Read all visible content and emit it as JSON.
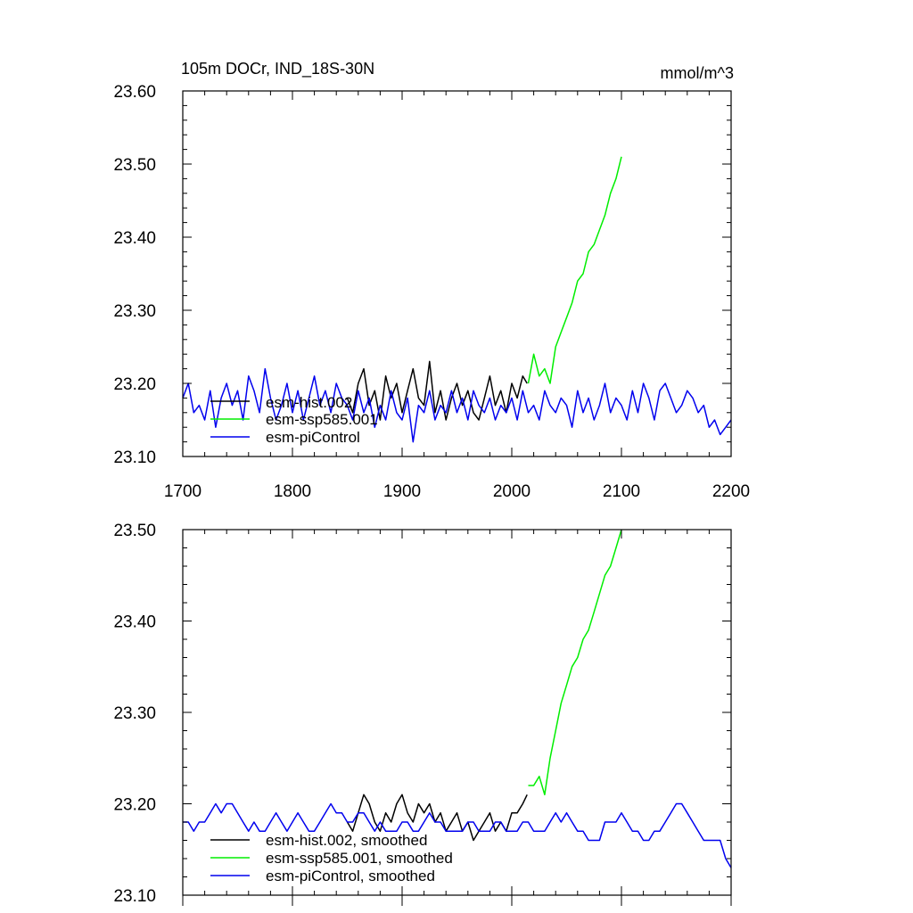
{
  "colors": {
    "hist": "#000000",
    "ssp": "#00ee00",
    "pi": "#0000ee"
  },
  "chart_data": [
    {
      "type": "line",
      "title": "105m DOCr, IND_18S-30N",
      "units": "mmol/m^3",
      "xlim": [
        1700,
        2200
      ],
      "ylim": [
        23.1,
        23.6
      ],
      "x_ticks": [
        "1700",
        "1800",
        "1900",
        "2000",
        "2100",
        "2200"
      ],
      "y_ticks": [
        "23.10",
        "23.20",
        "23.30",
        "23.40",
        "23.50",
        "23.60"
      ],
      "legend_position": "bottom-left",
      "series": [
        {
          "name": "esm-hist.002",
          "color": "#000000",
          "kind": "hist",
          "x": [
            1850,
            1855,
            1860,
            1865,
            1870,
            1875,
            1880,
            1885,
            1890,
            1895,
            1900,
            1905,
            1910,
            1915,
            1920,
            1925,
            1930,
            1935,
            1940,
            1945,
            1950,
            1955,
            1960,
            1965,
            1970,
            1975,
            1980,
            1985,
            1990,
            1995,
            2000,
            2005,
            2010,
            2014
          ],
          "y": [
            23.18,
            23.16,
            23.2,
            23.22,
            23.17,
            23.19,
            23.15,
            23.21,
            23.18,
            23.2,
            23.16,
            23.19,
            23.22,
            23.18,
            23.17,
            23.23,
            23.16,
            23.19,
            23.15,
            23.18,
            23.2,
            23.17,
            23.19,
            23.16,
            23.15,
            23.18,
            23.21,
            23.17,
            23.19,
            23.16,
            23.2,
            23.18,
            23.21,
            23.2
          ]
        },
        {
          "name": "esm-ssp585.001",
          "color": "#00ee00",
          "kind": "ssp",
          "x": [
            2015,
            2020,
            2025,
            2030,
            2035,
            2040,
            2045,
            2050,
            2055,
            2060,
            2065,
            2070,
            2075,
            2080,
            2085,
            2090,
            2095,
            2100
          ],
          "y": [
            23.2,
            23.24,
            23.21,
            23.22,
            23.2,
            23.25,
            23.27,
            23.29,
            23.31,
            23.34,
            23.35,
            23.38,
            23.39,
            23.41,
            23.43,
            23.46,
            23.48,
            23.51
          ]
        },
        {
          "name": "esm-piControl",
          "color": "#0000ee",
          "kind": "pi",
          "x": [
            1700,
            1705,
            1710,
            1715,
            1720,
            1725,
            1730,
            1735,
            1740,
            1745,
            1750,
            1755,
            1760,
            1765,
            1770,
            1775,
            1780,
            1785,
            1790,
            1795,
            1800,
            1805,
            1810,
            1815,
            1820,
            1825,
            1830,
            1835,
            1840,
            1845,
            1850,
            1855,
            1860,
            1865,
            1870,
            1875,
            1880,
            1885,
            1890,
            1895,
            1900,
            1905,
            1910,
            1915,
            1920,
            1925,
            1930,
            1935,
            1940,
            1945,
            1950,
            1955,
            1960,
            1965,
            1970,
            1975,
            1980,
            1985,
            1990,
            1995,
            2000,
            2005,
            2010,
            2015,
            2020,
            2025,
            2030,
            2035,
            2040,
            2045,
            2050,
            2055,
            2060,
            2065,
            2070,
            2075,
            2080,
            2085,
            2090,
            2095,
            2100,
            2105,
            2110,
            2115,
            2120,
            2125,
            2130,
            2135,
            2140,
            2145,
            2150,
            2155,
            2160,
            2165,
            2170,
            2175,
            2180,
            2185,
            2190,
            2195,
            2200
          ],
          "y": [
            23.18,
            23.2,
            23.16,
            23.17,
            23.15,
            23.19,
            23.14,
            23.18,
            23.2,
            23.17,
            23.19,
            23.15,
            23.21,
            23.19,
            23.16,
            23.22,
            23.18,
            23.15,
            23.17,
            23.2,
            23.16,
            23.19,
            23.15,
            23.18,
            23.21,
            23.17,
            23.19,
            23.16,
            23.2,
            23.18,
            23.17,
            23.15,
            23.19,
            23.16,
            23.18,
            23.14,
            23.17,
            23.15,
            23.19,
            23.16,
            23.15,
            23.18,
            23.12,
            23.17,
            23.16,
            23.19,
            23.15,
            23.17,
            23.16,
            23.19,
            23.16,
            23.18,
            23.15,
            23.19,
            23.17,
            23.16,
            23.18,
            23.15,
            23.17,
            23.16,
            23.18,
            23.15,
            23.19,
            23.16,
            23.17,
            23.15,
            23.19,
            23.17,
            23.16,
            23.18,
            23.17,
            23.14,
            23.19,
            23.16,
            23.18,
            23.15,
            23.17,
            23.2,
            23.16,
            23.18,
            23.17,
            23.15,
            23.19,
            23.16,
            23.2,
            23.18,
            23.15,
            23.19,
            23.2,
            23.18,
            23.16,
            23.17,
            23.19,
            23.18,
            23.16,
            23.17,
            23.14,
            23.15,
            23.13,
            23.14,
            23.15
          ]
        }
      ]
    },
    {
      "type": "line",
      "xlim": [
        1700,
        2200
      ],
      "ylim": [
        23.1,
        23.5
      ],
      "y_ticks": [
        "23.10",
        "23.20",
        "23.30",
        "23.40",
        "23.50"
      ],
      "legend_position": "bottom-left",
      "series": [
        {
          "name": "esm-hist.002, smoothed",
          "color": "#000000",
          "kind": "hist",
          "x": [
            1850,
            1855,
            1860,
            1865,
            1870,
            1875,
            1880,
            1885,
            1890,
            1895,
            1900,
            1905,
            1910,
            1915,
            1920,
            1925,
            1930,
            1935,
            1940,
            1945,
            1950,
            1955,
            1960,
            1965,
            1970,
            1975,
            1980,
            1985,
            1990,
            1995,
            2000,
            2005,
            2010,
            2014
          ],
          "y": [
            23.18,
            23.17,
            23.19,
            23.21,
            23.2,
            23.18,
            23.17,
            23.19,
            23.18,
            23.2,
            23.21,
            23.19,
            23.18,
            23.2,
            23.19,
            23.2,
            23.18,
            23.19,
            23.17,
            23.18,
            23.19,
            23.17,
            23.18,
            23.16,
            23.17,
            23.18,
            23.19,
            23.17,
            23.18,
            23.17,
            23.19,
            23.19,
            23.2,
            23.21
          ]
        },
        {
          "name": "esm-ssp585.001, smoothed",
          "color": "#00ee00",
          "kind": "ssp",
          "x": [
            2015,
            2020,
            2025,
            2030,
            2035,
            2040,
            2045,
            2050,
            2055,
            2060,
            2065,
            2070,
            2075,
            2080,
            2085,
            2090,
            2095,
            2100
          ],
          "y": [
            23.22,
            23.22,
            23.23,
            23.21,
            23.25,
            23.28,
            23.31,
            23.33,
            23.35,
            23.36,
            23.38,
            23.39,
            23.41,
            23.43,
            23.45,
            23.46,
            23.48,
            23.5
          ]
        },
        {
          "name": "esm-piControl, smoothed",
          "color": "#0000ee",
          "kind": "pi",
          "x": [
            1700,
            1705,
            1710,
            1715,
            1720,
            1725,
            1730,
            1735,
            1740,
            1745,
            1750,
            1755,
            1760,
            1765,
            1770,
            1775,
            1780,
            1785,
            1790,
            1795,
            1800,
            1805,
            1810,
            1815,
            1820,
            1825,
            1830,
            1835,
            1840,
            1845,
            1850,
            1855,
            1860,
            1865,
            1870,
            1875,
            1880,
            1885,
            1890,
            1895,
            1900,
            1905,
            1910,
            1915,
            1920,
            1925,
            1930,
            1935,
            1940,
            1945,
            1950,
            1955,
            1960,
            1965,
            1970,
            1975,
            1980,
            1985,
            1990,
            1995,
            2000,
            2005,
            2010,
            2015,
            2020,
            2025,
            2030,
            2035,
            2040,
            2045,
            2050,
            2055,
            2060,
            2065,
            2070,
            2075,
            2080,
            2085,
            2090,
            2095,
            2100,
            2105,
            2110,
            2115,
            2120,
            2125,
            2130,
            2135,
            2140,
            2145,
            2150,
            2155,
            2160,
            2165,
            2170,
            2175,
            2180,
            2185,
            2190,
            2195,
            2200
          ],
          "y": [
            23.18,
            23.18,
            23.17,
            23.18,
            23.18,
            23.19,
            23.2,
            23.19,
            23.2,
            23.2,
            23.19,
            23.18,
            23.17,
            23.18,
            23.17,
            23.17,
            23.18,
            23.19,
            23.18,
            23.17,
            23.18,
            23.19,
            23.18,
            23.17,
            23.17,
            23.18,
            23.19,
            23.2,
            23.19,
            23.19,
            23.18,
            23.18,
            23.19,
            23.19,
            23.18,
            23.17,
            23.18,
            23.17,
            23.17,
            23.17,
            23.18,
            23.18,
            23.17,
            23.17,
            23.18,
            23.19,
            23.18,
            23.18,
            23.17,
            23.17,
            23.17,
            23.17,
            23.18,
            23.18,
            23.17,
            23.17,
            23.17,
            23.18,
            23.18,
            23.17,
            23.17,
            23.17,
            23.18,
            23.18,
            23.17,
            23.17,
            23.17,
            23.18,
            23.19,
            23.18,
            23.19,
            23.18,
            23.17,
            23.17,
            23.16,
            23.16,
            23.16,
            23.18,
            23.18,
            23.18,
            23.19,
            23.18,
            23.17,
            23.17,
            23.16,
            23.16,
            23.17,
            23.17,
            23.18,
            23.19,
            23.2,
            23.2,
            23.19,
            23.18,
            23.17,
            23.16,
            23.16,
            23.16,
            23.16,
            23.14,
            23.13
          ]
        }
      ]
    }
  ]
}
